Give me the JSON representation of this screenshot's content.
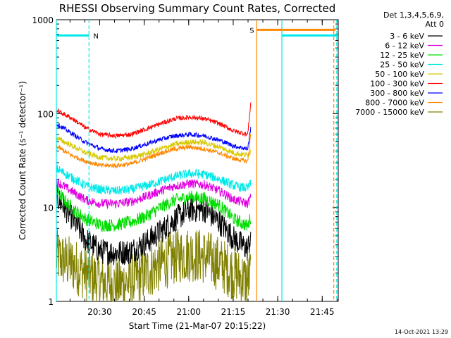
{
  "chart_data": {
    "type": "line",
    "title": "RHESSI Observing Summary Count Rates, Corrected",
    "xlabel": "Start Time (21-Mar-07 20:15:22)",
    "ylabel": "Corrected Count Rate (s⁻¹ detector⁻¹)",
    "yscale": "log",
    "ylim": [
      1,
      1000
    ],
    "xlim_minutes": [
      0,
      95
    ],
    "x_ticks": [
      "20:30",
      "20:45",
      "21:00",
      "21:15",
      "21:30",
      "21:45"
    ],
    "x_tick_minutes": [
      14.6,
      29.6,
      44.6,
      59.6,
      74.6,
      89.6
    ],
    "y_ticks": [
      "1",
      "10",
      "100",
      "1000"
    ],
    "y_tick_values": [
      1,
      10,
      100,
      1000
    ],
    "legend_header": [
      "Det 1,3,4,5,6,9,",
      "Att 0"
    ],
    "legend_position": "right",
    "series": [
      {
        "name": "3 - 6 keV",
        "color": "#000000",
        "x": [
          0,
          5,
          10,
          15,
          20,
          25,
          30,
          35,
          40,
          45,
          50,
          55,
          60,
          64.5,
          65.5
        ],
        "values": [
          13,
          8,
          4.5,
          3.4,
          3.3,
          3.4,
          4.2,
          5.5,
          7.5,
          9.5,
          9.5,
          7,
          4.6,
          3.6,
          5
        ],
        "noise": 0.14
      },
      {
        "name": "6 - 12 keV",
        "color": "#e000e0",
        "x": [
          0,
          5,
          10,
          15,
          20,
          25,
          30,
          35,
          40,
          45,
          50,
          55,
          60,
          64.5,
          65.5
        ],
        "values": [
          19,
          15,
          12,
          11,
          11,
          11.5,
          13,
          15,
          17,
          18,
          17.5,
          15,
          12,
          11,
          13
        ],
        "noise": 0.05
      },
      {
        "name": "12 - 25 keV",
        "color": "#00dd00",
        "x": [
          0,
          5,
          10,
          15,
          20,
          25,
          30,
          35,
          40,
          45,
          50,
          55,
          60,
          64.5,
          65.5
        ],
        "values": [
          15,
          10,
          7.5,
          6.5,
          6.5,
          7,
          8,
          10,
          12,
          13,
          12.5,
          10.5,
          7.5,
          6.3,
          8
        ],
        "noise": 0.07
      },
      {
        "name": "25 - 50 keV",
        "color": "#00e8e8",
        "x": [
          0,
          5,
          10,
          15,
          20,
          25,
          30,
          35,
          40,
          45,
          50,
          55,
          60,
          64.5,
          65.5
        ],
        "values": [
          26,
          21,
          17,
          15.5,
          15,
          15.5,
          17,
          19,
          21.5,
          23,
          22.5,
          20,
          17,
          16,
          18
        ],
        "noise": 0.05
      },
      {
        "name": "50 - 100 keV",
        "color": "#d8c800",
        "x": [
          0,
          5,
          10,
          15,
          20,
          25,
          30,
          35,
          40,
          45,
          50,
          55,
          60,
          64.5,
          65.5
        ],
        "values": [
          55,
          46,
          38,
          34,
          33,
          34,
          37,
          42,
          47,
          50,
          49,
          44,
          38,
          36,
          40
        ],
        "noise": 0.03
      },
      {
        "name": "100 - 300 keV",
        "color": "#ff0000",
        "x": [
          0,
          5,
          10,
          15,
          20,
          25,
          30,
          35,
          40,
          45,
          50,
          55,
          60,
          64.5,
          65.5
        ],
        "values": [
          108,
          90,
          70,
          60,
          58,
          60,
          68,
          78,
          88,
          92,
          88,
          78,
          65,
          60,
          130
        ],
        "noise": 0.025
      },
      {
        "name": "300 - 800 keV",
        "color": "#0000ff",
        "x": [
          0,
          5,
          10,
          15,
          20,
          25,
          30,
          35,
          40,
          45,
          50,
          55,
          60,
          64.5,
          65.5
        ],
        "values": [
          78,
          62,
          49,
          42,
          40,
          42,
          47,
          53,
          58,
          60,
          58,
          52,
          45,
          42,
          70
        ],
        "noise": 0.025
      },
      {
        "name": "800 - 7000 keV",
        "color": "#ff8800",
        "x": [
          0,
          5,
          10,
          15,
          20,
          25,
          30,
          35,
          40,
          45,
          50,
          55,
          60,
          64.5,
          65.5
        ],
        "values": [
          45,
          36,
          31,
          28,
          28,
          29,
          33,
          38,
          42,
          44,
          42,
          38,
          33,
          31,
          60
        ],
        "noise": 0.025
      },
      {
        "name": "7000 - 15000 keV",
        "color": "#808000",
        "x": [
          0,
          5,
          10,
          15,
          20,
          25,
          30,
          35,
          40,
          45,
          50,
          55,
          60,
          64.5,
          65.5
        ],
        "values": [
          3,
          2.5,
          2,
          1.6,
          1.5,
          1.6,
          2,
          2.5,
          3,
          3.2,
          3,
          2.5,
          2,
          1.6,
          2
        ],
        "noise": 0.3
      }
    ],
    "flag_bars": [
      {
        "label": "N",
        "color": "#00e8e8",
        "y": 680,
        "x_start": 0,
        "x_end": 11
      },
      {
        "label": "S",
        "color": "#ff8800",
        "y": 780,
        "x_start": 67.5,
        "x_end": 94
      },
      {
        "label": "",
        "color": "#00e8e8",
        "y": 680,
        "x_start": 76,
        "x_end": 95
      }
    ],
    "vertical_lines": [
      {
        "color": "#00e8e8",
        "x": 0,
        "style": "solid"
      },
      {
        "color": "#00e8e8",
        "x": 11,
        "style": "dashed"
      },
      {
        "color": "#ff8800",
        "x": 67.5,
        "style": "solid"
      },
      {
        "color": "#00e8e8",
        "x": 76,
        "style": "solid"
      },
      {
        "color": "#ff8800",
        "x": 93.5,
        "style": "dashed"
      },
      {
        "color": "#00e8e8",
        "x": 94.5,
        "style": "dashed"
      }
    ],
    "grid": false
  },
  "footer": {
    "timestamp": "14-Oct-2021 13:29"
  }
}
